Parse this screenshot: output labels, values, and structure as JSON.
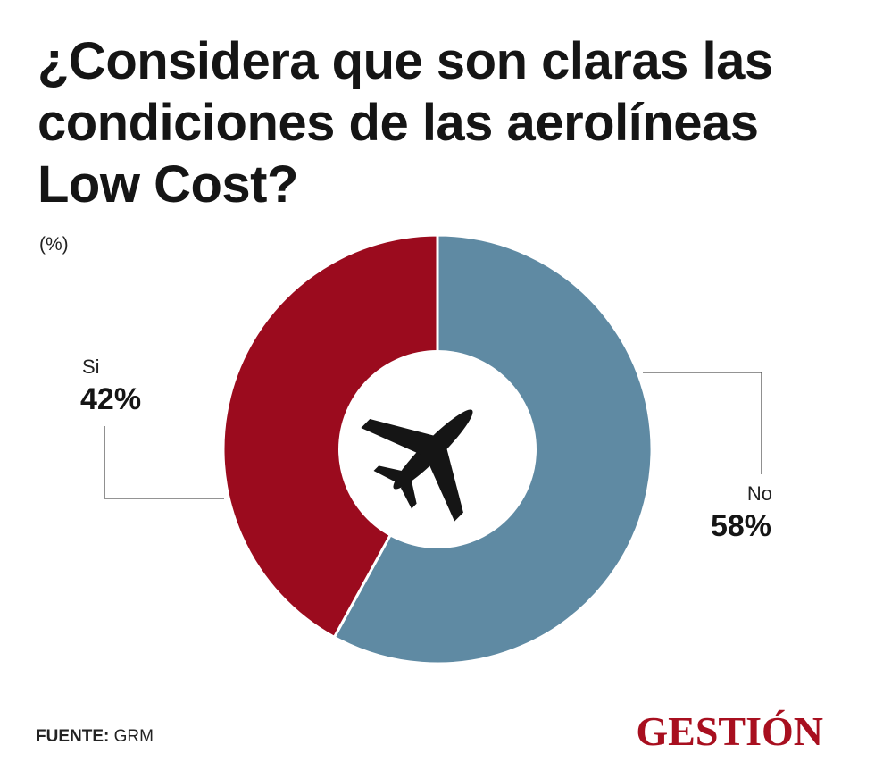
{
  "header": {
    "title": "¿Considera que son claras las condiciones de las aerolíneas Low Cost?",
    "unit": "(%)"
  },
  "chart_data": {
    "type": "pie",
    "donut": true,
    "categories": [
      "No",
      "Si"
    ],
    "values": [
      58,
      42
    ],
    "value_labels": [
      "58%",
      "42%"
    ],
    "colors": [
      "#5f8aa3",
      "#9b0b1e"
    ],
    "center_icon": "airplane-icon",
    "legend": "none"
  },
  "footer": {
    "source_key": "FUENTE:",
    "source_value": "GRM",
    "logo": "GESTIÓN"
  }
}
